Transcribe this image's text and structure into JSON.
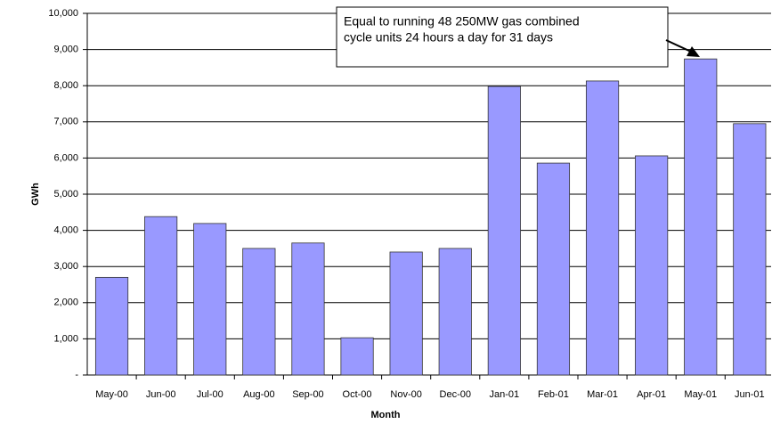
{
  "chart_data": {
    "type": "bar",
    "x_label": "Month",
    "y_label": "GWh",
    "annotation": [
      "Equal to running 48 250MW gas combined",
      "cycle units 24 hours a day for 31 days"
    ],
    "categories": [
      "May-00",
      "Jun-00",
      "Jul-00",
      "Aug-00",
      "Sep-00",
      "Oct-00",
      "Nov-00",
      "Dec-00",
      "Jan-01",
      "Feb-01",
      "Mar-01",
      "Apr-01",
      "May-01",
      "Jun-01"
    ],
    "values": [
      2700,
      4380,
      4190,
      3500,
      3650,
      1030,
      3400,
      3500,
      7980,
      5860,
      8130,
      6060,
      8740,
      6950
    ],
    "color": "#9999ff",
    "ylim": [
      0,
      10000
    ],
    "yticks": [
      {
        "value": 0,
        "label": "-"
      },
      {
        "value": 1000,
        "label": "1,000"
      },
      {
        "value": 2000,
        "label": "2,000"
      },
      {
        "value": 3000,
        "label": "3,000"
      },
      {
        "value": 4000,
        "label": "4,000"
      },
      {
        "value": 5000,
        "label": "5,000"
      },
      {
        "value": 6000,
        "label": "6,000"
      },
      {
        "value": 7000,
        "label": "7,000"
      },
      {
        "value": 8000,
        "label": "8,000"
      },
      {
        "value": 9000,
        "label": "9,000"
      },
      {
        "value": 10000,
        "label": "10,000"
      }
    ],
    "grid": true
  }
}
